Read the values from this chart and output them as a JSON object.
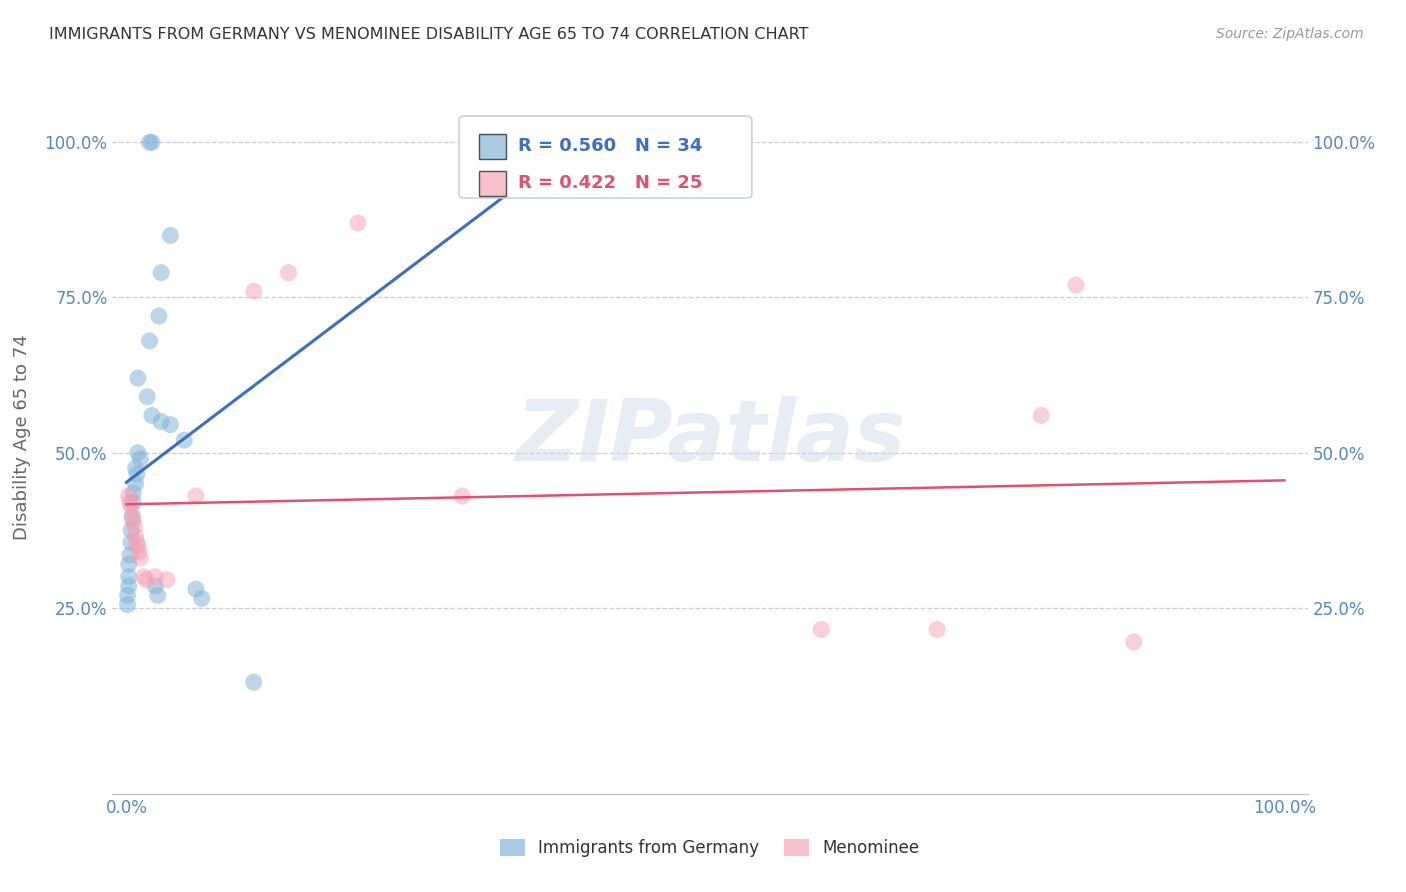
{
  "title": "IMMIGRANTS FROM GERMANY VS MENOMINEE DISABILITY AGE 65 TO 74 CORRELATION CHART",
  "source": "Source: ZipAtlas.com",
  "ylabel": "Disability Age 65 to 74",
  "legend_r1": "R = 0.560",
  "legend_n1": "N = 34",
  "legend_r2": "R = 0.422",
  "legend_n2": "N = 25",
  "blue_color": "#7BAFD4",
  "pink_color": "#F4A0B5",
  "blue_line_color": "#3D6FBF",
  "pink_line_color": "#E05070",
  "axis_tick_color": "#5588BB",
  "background_color": "#FFFFFF",
  "grid_color": "#CCCCDD",
  "title_color": "#333333",
  "source_color": "#999999",
  "watermark_text": "ZIPatlas",
  "blue_scatter": [
    [
      0.02,
      1.0
    ],
    [
      0.022,
      1.0
    ],
    [
      0.038,
      0.85
    ],
    [
      0.03,
      0.79
    ],
    [
      0.028,
      0.72
    ],
    [
      0.02,
      0.68
    ],
    [
      0.01,
      0.62
    ],
    [
      0.018,
      0.59
    ],
    [
      0.022,
      0.56
    ],
    [
      0.03,
      0.55
    ],
    [
      0.038,
      0.545
    ],
    [
      0.05,
      0.52
    ],
    [
      0.01,
      0.5
    ],
    [
      0.012,
      0.49
    ],
    [
      0.008,
      0.475
    ],
    [
      0.009,
      0.465
    ],
    [
      0.008,
      0.45
    ],
    [
      0.006,
      0.435
    ],
    [
      0.006,
      0.42
    ],
    [
      0.005,
      0.395
    ],
    [
      0.004,
      0.375
    ],
    [
      0.004,
      0.355
    ],
    [
      0.003,
      0.335
    ],
    [
      0.002,
      0.32
    ],
    [
      0.002,
      0.3
    ],
    [
      0.002,
      0.285
    ],
    [
      0.001,
      0.27
    ],
    [
      0.001,
      0.255
    ],
    [
      0.025,
      0.285
    ],
    [
      0.027,
      0.27
    ],
    [
      0.06,
      0.28
    ],
    [
      0.065,
      0.265
    ],
    [
      0.11,
      0.13
    ],
    [
      0.3,
      1.0
    ]
  ],
  "pink_scatter": [
    [
      0.002,
      0.43
    ],
    [
      0.003,
      0.42
    ],
    [
      0.004,
      0.415
    ],
    [
      0.005,
      0.4
    ],
    [
      0.006,
      0.39
    ],
    [
      0.007,
      0.38
    ],
    [
      0.008,
      0.365
    ],
    [
      0.009,
      0.355
    ],
    [
      0.01,
      0.35
    ],
    [
      0.011,
      0.34
    ],
    [
      0.012,
      0.33
    ],
    [
      0.015,
      0.3
    ],
    [
      0.017,
      0.295
    ],
    [
      0.025,
      0.3
    ],
    [
      0.035,
      0.295
    ],
    [
      0.06,
      0.43
    ],
    [
      0.11,
      0.76
    ],
    [
      0.14,
      0.79
    ],
    [
      0.2,
      0.87
    ],
    [
      0.6,
      0.215
    ],
    [
      0.7,
      0.215
    ],
    [
      0.79,
      0.56
    ],
    [
      0.82,
      0.77
    ],
    [
      0.87,
      0.195
    ],
    [
      0.29,
      0.43
    ]
  ],
  "xlim": [
    0.0,
    1.0
  ],
  "ylim": [
    0.0,
    1.0
  ],
  "xtick_pos": [
    0.0,
    0.1,
    0.2,
    0.3,
    0.4,
    0.5,
    0.6,
    0.7,
    0.8,
    0.9,
    1.0
  ],
  "xtick_labels": [
    "0.0%",
    "",
    "",
    "",
    "",
    "",
    "",
    "",
    "",
    "",
    "100.0%"
  ],
  "ytick_pos": [
    0.25,
    0.5,
    0.75,
    1.0
  ],
  "ytick_labels": [
    "25.0%",
    "50.0%",
    "75.0%",
    "100.0%"
  ]
}
